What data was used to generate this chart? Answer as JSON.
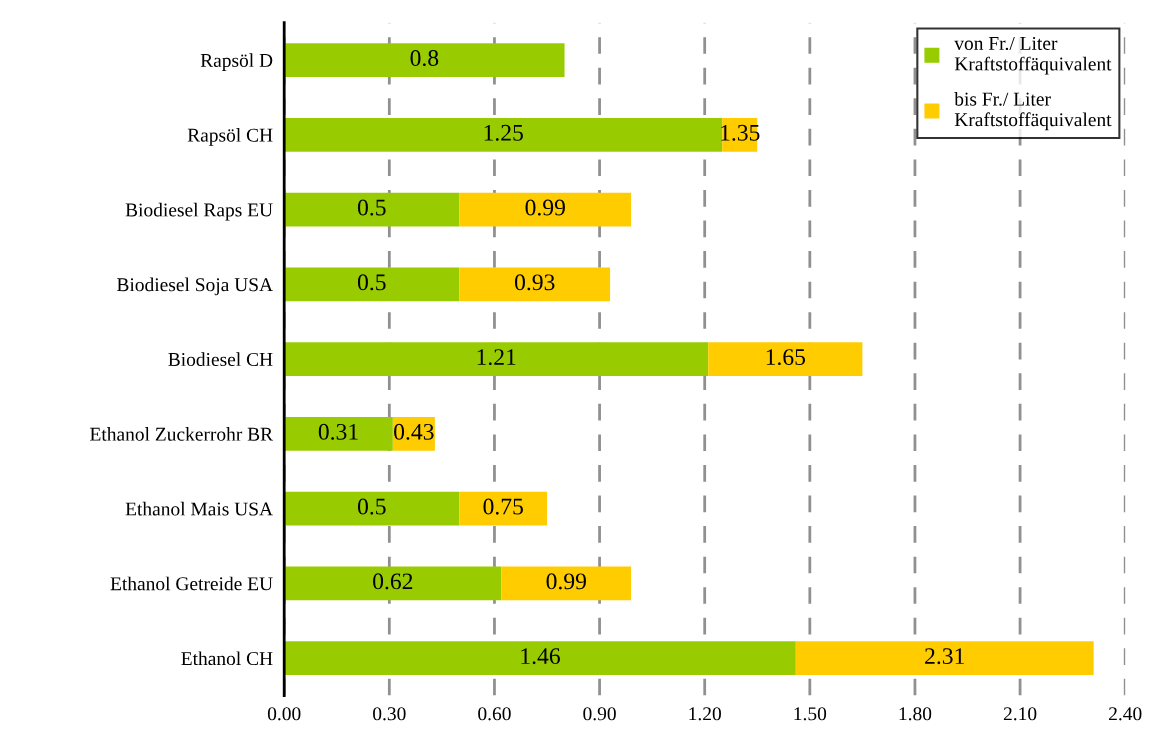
{
  "chart_data": {
    "type": "bar",
    "orientation": "horizontal",
    "categories": [
      "Rapsöl D",
      "Rapsöl CH",
      "Biodiesel Raps EU",
      "Biodiesel Soja USA",
      "Biodiesel CH",
      "Ethanol Zuckerrohr BR",
      "Ethanol Mais USA",
      "Ethanol Getreide EU",
      "Ethanol CH"
    ],
    "series": [
      {
        "name": "von Fr./ Liter\nKraftstoffäquivalent",
        "color": "#99cc00",
        "values": [
          0.8,
          1.25,
          0.5,
          0.5,
          1.21,
          0.31,
          0.5,
          0.62,
          1.46
        ],
        "value_labels": [
          "0.8",
          "1.25",
          "0.5",
          "0.5",
          "1.21",
          "0.31",
          "0.5",
          "0.62",
          "1.46"
        ]
      },
      {
        "name": "bis Fr./ Liter\nKraftstoffäquivalent",
        "color": "#ffcc00",
        "values": [
          null,
          0.1,
          0.49,
          0.43,
          0.44,
          0.12,
          0.25,
          0.37,
          0.85
        ]
      }
    ],
    "totals": [
      null,
      "1.35",
      "0.99",
      "0.93",
      "1.65",
      "0.43",
      "0.75",
      "0.99",
      "2.31"
    ],
    "xlim": [
      0,
      2.4
    ],
    "xticks": [
      {
        "value": 0,
        "label": "0.00"
      },
      {
        "value": 0.3,
        "label": "0.30"
      },
      {
        "value": 0.6,
        "label": "0.60"
      },
      {
        "value": 0.9,
        "label": "0.90"
      },
      {
        "value": 1.2,
        "label": "1.20"
      },
      {
        "value": 1.5,
        "label": "1.50"
      },
      {
        "value": 1.8,
        "label": "1.80"
      },
      {
        "value": 2.1,
        "label": "2.10"
      },
      {
        "value": 2.4,
        "label": "2.40"
      }
    ],
    "stacked": true,
    "grid": "x",
    "legend": "top right"
  }
}
